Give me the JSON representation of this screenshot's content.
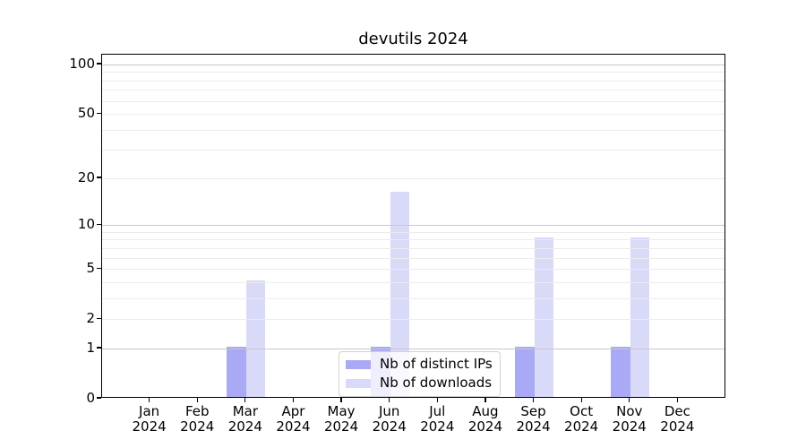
{
  "title": "devutils 2024",
  "chart_data": {
    "type": "bar",
    "title": "devutils 2024",
    "categories": [
      "Jan 2024",
      "Feb 2024",
      "Mar 2024",
      "Apr 2024",
      "May 2024",
      "Jun 2024",
      "Jul 2024",
      "Aug 2024",
      "Sep 2024",
      "Oct 2024",
      "Nov 2024",
      "Dec 2024"
    ],
    "series": [
      {
        "name": "Nb of distinct IPs",
        "color": "#a9a9f5",
        "values": [
          0,
          0,
          1,
          0,
          0,
          1,
          0,
          0,
          1,
          0,
          1,
          0
        ]
      },
      {
        "name": "Nb of downloads",
        "color": "#d9d9f8",
        "values": [
          0,
          0,
          4,
          0,
          0,
          16,
          0,
          0,
          8,
          0,
          8,
          0
        ]
      }
    ],
    "xlabel": "",
    "ylabel": "",
    "yscale": "log10(1+v)",
    "ylim": [
      0,
      114.7
    ],
    "yticks": [
      0,
      1,
      2,
      5,
      10,
      20,
      50,
      100
    ],
    "major_gridlines": [
      1,
      10,
      100
    ],
    "minor_gridlines": [
      2,
      3,
      4,
      5,
      6,
      7,
      8,
      9,
      20,
      30,
      40,
      50,
      60,
      70,
      80,
      90
    ],
    "grid": true,
    "bar_width_fraction": 0.4,
    "legend_position": "lower center"
  },
  "legend": {
    "items": [
      {
        "label": "Nb of distinct IPs",
        "color": "#a9a9f5"
      },
      {
        "label": "Nb of downloads",
        "color": "#d9d9f8"
      }
    ]
  }
}
